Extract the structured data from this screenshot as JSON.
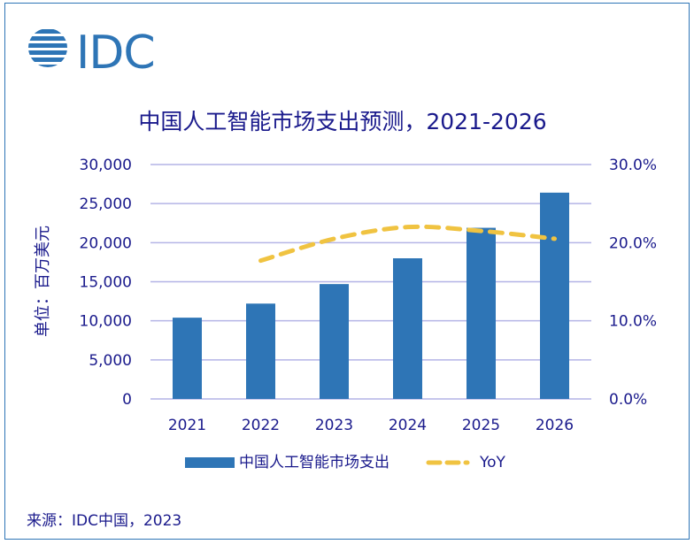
{
  "brand": {
    "logo_text": "IDC",
    "color": "#2e75b6"
  },
  "title": "中国人工智能市场支出预测，2021-2026",
  "source": "来源：IDC中国，2023",
  "chart_data": {
    "type": "bar",
    "categories": [
      "2021",
      "2022",
      "2023",
      "2024",
      "2025",
      "2026"
    ],
    "series": [
      {
        "name": "中国人工智能市场支出",
        "type": "bar",
        "axis": "left",
        "color": "#2e75b6",
        "values": [
          10400,
          12200,
          14700,
          18000,
          21900,
          26400
        ]
      },
      {
        "name": "YoY",
        "type": "line",
        "axis": "right",
        "style": "dashed",
        "color": "#f0c341",
        "values": [
          null,
          17.7,
          20.5,
          22.0,
          21.5,
          20.5
        ]
      }
    ],
    "ylabel": "单位：百万美元",
    "ylim": [
      0,
      30000
    ],
    "y_ticks": [
      "30,000",
      "25,000",
      "20,000",
      "15,000",
      "10,000",
      "5,000",
      "0"
    ],
    "y2lim": [
      0,
      30
    ],
    "y2_ticks": [
      "30.0%",
      "20.0%",
      "10.0%",
      "0.0%"
    ],
    "grid": true,
    "grid_color": "#b4b4e6",
    "legend_position": "bottom"
  }
}
